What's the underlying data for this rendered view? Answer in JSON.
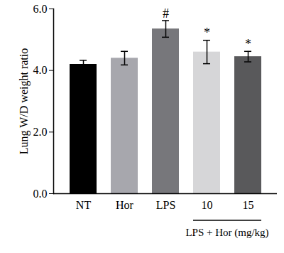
{
  "chart_data": {
    "type": "bar",
    "categories": [
      "NT",
      "Hor",
      "LPS",
      "10",
      "15"
    ],
    "values": [
      4.2,
      4.4,
      5.35,
      4.6,
      4.45
    ],
    "errors": [
      0.13,
      0.22,
      0.27,
      0.38,
      0.17
    ],
    "colors": [
      "#000000",
      "#a7a7ad",
      "#77777b",
      "#d6d6d8",
      "#59595b"
    ],
    "y_label": "Lung W/D weight ratio",
    "ylim": [
      0,
      6
    ],
    "yticks": [
      0,
      2,
      4,
      6
    ],
    "annotations": [
      {
        "category": "LPS",
        "text": "#"
      },
      {
        "category": "10",
        "text": "*"
      },
      {
        "category": "15",
        "text": "*"
      }
    ],
    "group_label": {
      "text": "LPS + Hor (mg/kg)",
      "categories": [
        "10",
        "15"
      ]
    }
  }
}
